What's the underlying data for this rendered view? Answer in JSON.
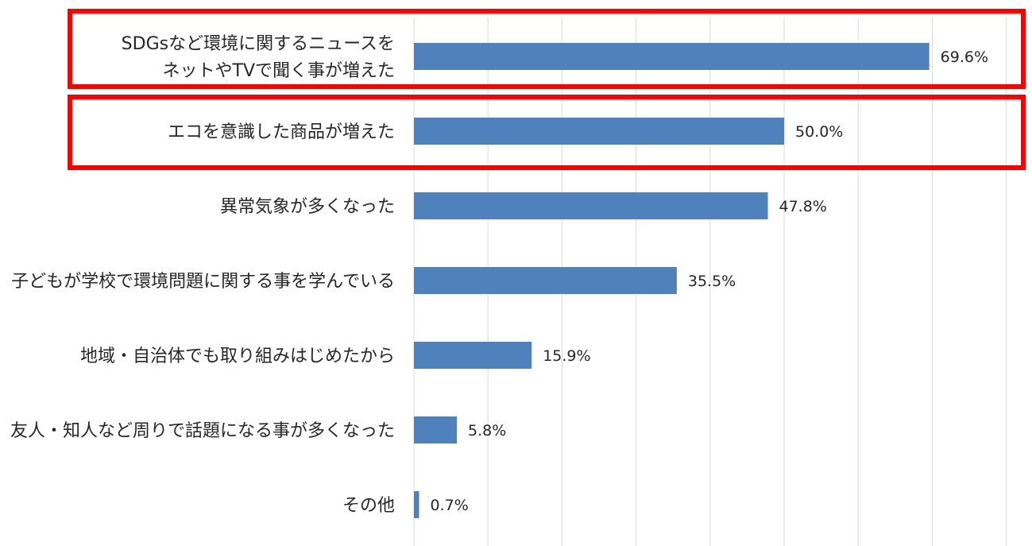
{
  "chart_data": {
    "type": "bar",
    "orientation": "horizontal",
    "categories": [
      [
        "SDGsなど環境に関するニュースを",
        "ネットやTVで聞く事が増えた"
      ],
      [
        "エコを意識した商品が増えた"
      ],
      [
        "異常気象が多くなった"
      ],
      [
        "子どもが学校で環境問題に関する事を学んでいる"
      ],
      [
        "地域・自治体でも取り組みはじめたから"
      ],
      [
        "友人・知人など周りで話題になる事が多くなった"
      ],
      [
        "その他"
      ]
    ],
    "values": [
      69.6,
      50.0,
      47.8,
      35.5,
      15.9,
      5.8,
      0.7
    ],
    "value_labels": [
      "69.6%",
      "50.0%",
      "47.8%",
      "35.5%",
      "15.9%",
      "5.8%",
      "0.7%"
    ],
    "xlim": [
      0,
      80
    ],
    "grid": true,
    "highlighted_categories": [
      0,
      1
    ],
    "bar_color": "#4F81BD",
    "grid_color": "#D9D9D9",
    "highlight_color": "#FF0000",
    "text_color": "#262626"
  }
}
